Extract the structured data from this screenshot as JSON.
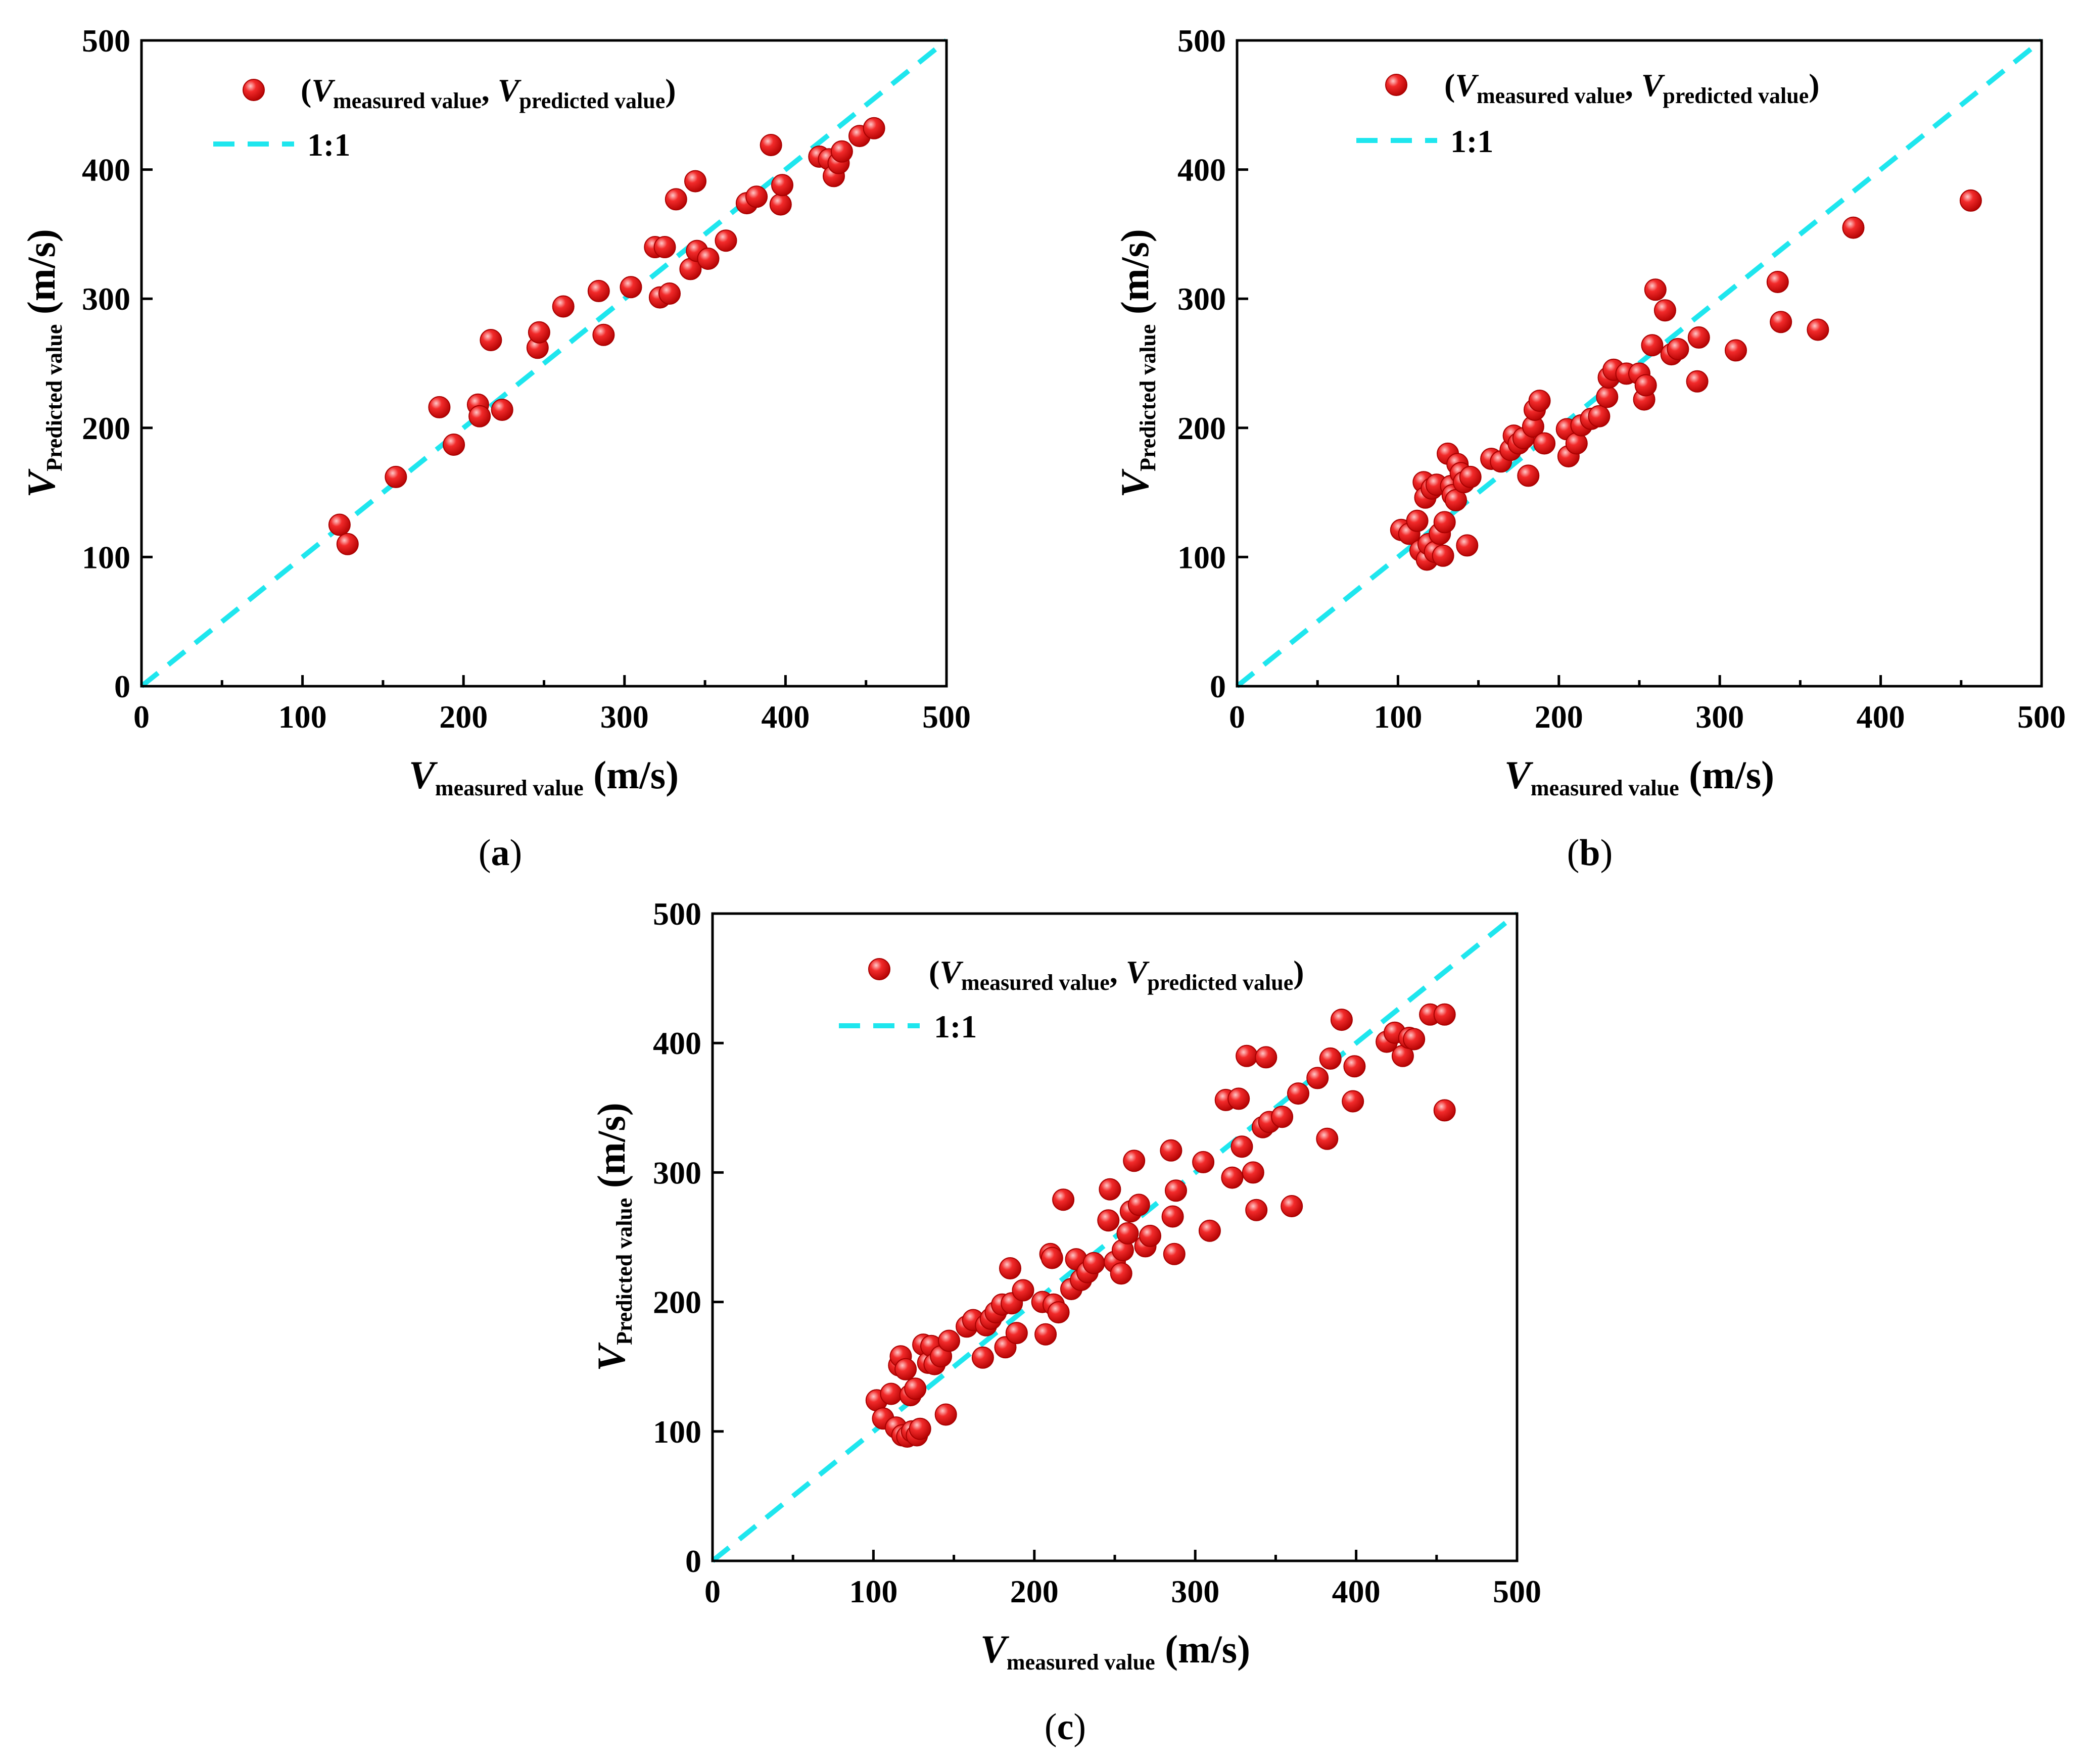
{
  "colors": {
    "point_fill": "#e51b1b",
    "point_highlight": "#ffb3b3",
    "point_edge": "#a80000",
    "reference_line": "#1ee6ee",
    "axis": "#000000"
  },
  "legend": {
    "series_prefix": "(",
    "series_var_1": "V",
    "series_sub_1": "measured value",
    "series_separator": ", ",
    "series_var_2": "V",
    "series_sub_2": "predicted value",
    "series_suffix": ")",
    "reference_label": "1:1"
  },
  "axes": {
    "x_var": "V",
    "x_sub": "measured value",
    "x_unit": " (m/s)",
    "y_var": "V",
    "y_sub": "Predicted value",
    "y_unit": " (m/s)"
  },
  "chart_data": [
    {
      "id": "a",
      "type": "scatter",
      "caption_open": "(",
      "caption_letter": "a",
      "caption_close": ")",
      "xlabel": "V measured value (m/s)",
      "ylabel": "V Predicted value (m/s)",
      "xlim": [
        0,
        500
      ],
      "ylim": [
        0,
        500
      ],
      "xticks": [
        0,
        100,
        200,
        300,
        400,
        500
      ],
      "yticks": [
        0,
        100,
        200,
        300,
        400,
        500
      ],
      "xtick_labels": [
        "0",
        "100",
        "200",
        "300",
        "400",
        "500"
      ],
      "ytick_labels": [
        "0",
        "100",
        "200",
        "300",
        "400",
        "500"
      ],
      "reference_line": {
        "label": "1:1",
        "from": [
          0,
          0
        ],
        "to": [
          500,
          500
        ]
      },
      "legend_position": "top-left",
      "series": [
        {
          "name": "(V measured value, V predicted value)",
          "points": [
            [
              123,
              125
            ],
            [
              128,
              110
            ],
            [
              158,
              162
            ],
            [
              185,
              216
            ],
            [
              194,
              187
            ],
            [
              209,
              218
            ],
            [
              210,
              209
            ],
            [
              217,
              268
            ],
            [
              224,
              214
            ],
            [
              246,
              262
            ],
            [
              247,
              274
            ],
            [
              262,
              294
            ],
            [
              284,
              306
            ],
            [
              287,
              272
            ],
            [
              304,
              309
            ],
            [
              319,
              340
            ],
            [
              322,
              301
            ],
            [
              325,
              340
            ],
            [
              328,
              304
            ],
            [
              332,
              377
            ],
            [
              341,
              323
            ],
            [
              344,
              391
            ],
            [
              345,
              337
            ],
            [
              352,
              331
            ],
            [
              363,
              345
            ],
            [
              376,
              374
            ],
            [
              382,
              379
            ],
            [
              391,
              419
            ],
            [
              397,
              373
            ],
            [
              398,
              388
            ],
            [
              421,
              410
            ],
            [
              427,
              408
            ],
            [
              430,
              395
            ],
            [
              433,
              405
            ],
            [
              435,
              414
            ],
            [
              446,
              426
            ],
            [
              455,
              432
            ]
          ]
        }
      ]
    },
    {
      "id": "b",
      "type": "scatter",
      "caption_open": "(",
      "caption_letter": "b",
      "caption_close": ")",
      "xlabel": "V measured value (m/s)",
      "ylabel": "V Predicted value (m/s)",
      "xlim": [
        0,
        500
      ],
      "ylim": [
        0,
        500
      ],
      "xticks": [
        0,
        100,
        200,
        300,
        400,
        500
      ],
      "yticks": [
        0,
        100,
        200,
        300,
        400,
        500
      ],
      "xtick_labels": [
        "0",
        "100",
        "200",
        "300",
        "400",
        "500"
      ],
      "ytick_labels": [
        "0",
        "100",
        "200",
        "300",
        "400",
        "500"
      ],
      "reference_line": {
        "label": "1:1",
        "from": [
          0,
          0
        ],
        "to": [
          500,
          500
        ]
      },
      "legend_position": "top-left",
      "series": [
        {
          "name": "(V measured value, V predicted value)",
          "points": [
            [
              102,
              121
            ],
            [
              107,
              118
            ],
            [
              112,
              128
            ],
            [
              114,
              105
            ],
            [
              116,
              158
            ],
            [
              117,
              146
            ],
            [
              118,
              98
            ],
            [
              119,
              110
            ],
            [
              121,
              153
            ],
            [
              123,
              104
            ],
            [
              124,
              156
            ],
            [
              126,
              118
            ],
            [
              128,
              101
            ],
            [
              129,
              127
            ],
            [
              131,
              180
            ],
            [
              133,
              155
            ],
            [
              134,
              148
            ],
            [
              136,
              144
            ],
            [
              137,
              172
            ],
            [
              139,
              165
            ],
            [
              141,
              158
            ],
            [
              143,
              109
            ],
            [
              145,
              162
            ],
            [
              158,
              176
            ],
            [
              164,
              174
            ],
            [
              170,
              183
            ],
            [
              172,
              194
            ],
            [
              175,
              188
            ],
            [
              178,
              192
            ],
            [
              181,
              163
            ],
            [
              184,
              201
            ],
            [
              185,
              214
            ],
            [
              188,
              221
            ],
            [
              191,
              188
            ],
            [
              205,
              199
            ],
            [
              206,
              178
            ],
            [
              211,
              188
            ],
            [
              214,
              202
            ],
            [
              220,
              207
            ],
            [
              225,
              209
            ],
            [
              230,
              224
            ],
            [
              231,
              239
            ],
            [
              234,
              245
            ],
            [
              242,
              242
            ],
            [
              250,
              242
            ],
            [
              253,
              222
            ],
            [
              254,
              233
            ],
            [
              258,
              264
            ],
            [
              260,
              307
            ],
            [
              266,
              291
            ],
            [
              270,
              257
            ],
            [
              274,
              261
            ],
            [
              286,
              236
            ],
            [
              287,
              270
            ],
            [
              310,
              260
            ],
            [
              336,
              313
            ],
            [
              338,
              282
            ],
            [
              361,
              276
            ],
            [
              383,
              355
            ],
            [
              456,
              376
            ]
          ]
        }
      ]
    },
    {
      "id": "c",
      "type": "scatter",
      "caption_open": "(",
      "caption_letter": "c",
      "caption_close": ")",
      "xlabel": "V measured value (m/s)",
      "ylabel": "V Predicted value (m/s)",
      "xlim": [
        0,
        500
      ],
      "ylim": [
        0,
        500
      ],
      "xticks": [
        0,
        100,
        200,
        300,
        400,
        500
      ],
      "yticks": [
        0,
        100,
        200,
        300,
        400,
        500
      ],
      "xtick_labels": [
        "0",
        "100",
        "200",
        "300",
        "400",
        "500"
      ],
      "ytick_labels": [
        "0",
        "100",
        "200",
        "300",
        "400",
        "500"
      ],
      "reference_line": {
        "label": "1:1",
        "from": [
          0,
          0
        ],
        "to": [
          500,
          500
        ]
      },
      "legend_position": "top-left",
      "series": [
        {
          "name": "(V measured value, V predicted value)",
          "points": [
            [
              102,
              124
            ],
            [
              106,
              110
            ],
            [
              111,
              129
            ],
            [
              114,
              103
            ],
            [
              116,
              151
            ],
            [
              117,
              158
            ],
            [
              118,
              97
            ],
            [
              120,
              148
            ],
            [
              121,
              96
            ],
            [
              123,
              128
            ],
            [
              124,
              100
            ],
            [
              126,
              133
            ],
            [
              127,
              97
            ],
            [
              129,
              102
            ],
            [
              131,
              167
            ],
            [
              134,
              153
            ],
            [
              136,
              166
            ],
            [
              138,
              152
            ],
            [
              142,
              158
            ],
            [
              145,
              113
            ],
            [
              147,
              170
            ],
            [
              158,
              181
            ],
            [
              162,
              186
            ],
            [
              168,
              157
            ],
            [
              170,
              182
            ],
            [
              173,
              187
            ],
            [
              176,
              192
            ],
            [
              180,
              198
            ],
            [
              182,
              165
            ],
            [
              185,
              226
            ],
            [
              186,
              199
            ],
            [
              189,
              176
            ],
            [
              193,
              209
            ],
            [
              205,
              200
            ],
            [
              207,
              175
            ],
            [
              210,
              237
            ],
            [
              211,
              234
            ],
            [
              212,
              198
            ],
            [
              215,
              192
            ],
            [
              218,
              279
            ],
            [
              223,
              210
            ],
            [
              226,
              233
            ],
            [
              229,
              217
            ],
            [
              233,
              223
            ],
            [
              237,
              230
            ],
            [
              246,
              263
            ],
            [
              247,
              287
            ],
            [
              250,
              231
            ],
            [
              254,
              222
            ],
            [
              255,
              240
            ],
            [
              258,
              253
            ],
            [
              260,
              270
            ],
            [
              262,
              309
            ],
            [
              265,
              275
            ],
            [
              269,
              243
            ],
            [
              272,
              251
            ],
            [
              285,
              317
            ],
            [
              286,
              266
            ],
            [
              287,
              237
            ],
            [
              288,
              286
            ],
            [
              305,
              308
            ],
            [
              309,
              255
            ],
            [
              319,
              356
            ],
            [
              323,
              296
            ],
            [
              327,
              357
            ],
            [
              329,
              320
            ],
            [
              332,
              390
            ],
            [
              336,
              300
            ],
            [
              338,
              271
            ],
            [
              342,
              335
            ],
            [
              344,
              389
            ],
            [
              346,
              339
            ],
            [
              354,
              343
            ],
            [
              360,
              274
            ],
            [
              364,
              361
            ],
            [
              376,
              373
            ],
            [
              382,
              326
            ],
            [
              384,
              388
            ],
            [
              391,
              418
            ],
            [
              398,
              355
            ],
            [
              399,
              382
            ],
            [
              419,
              401
            ],
            [
              424,
              408
            ],
            [
              429,
              390
            ],
            [
              433,
              404
            ],
            [
              436,
              403
            ],
            [
              446,
              422
            ],
            [
              455,
              422
            ],
            [
              455,
              348
            ]
          ]
        }
      ]
    }
  ]
}
